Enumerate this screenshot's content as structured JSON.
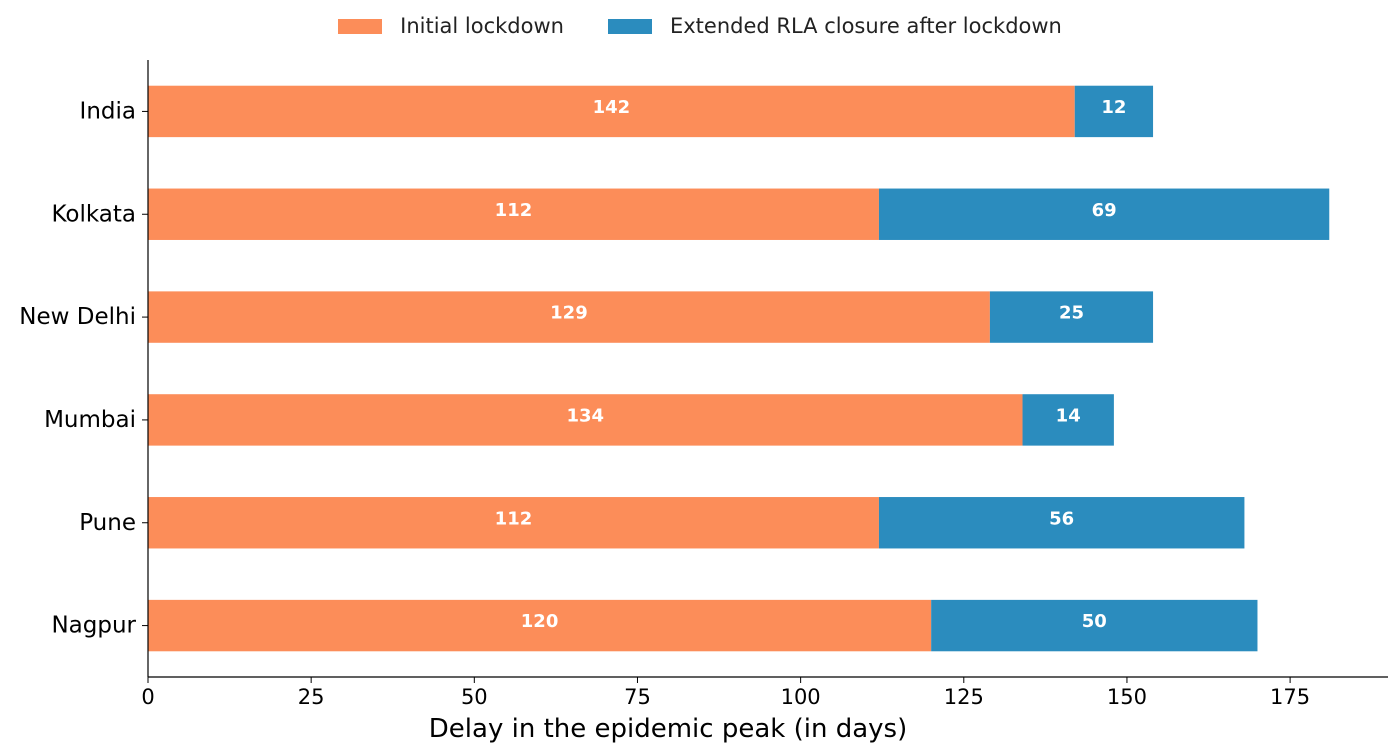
{
  "chart_data": {
    "type": "bar",
    "orientation": "horizontal",
    "stacked": true,
    "title": "",
    "xlabel": "Delay in the epidemic peak (in days)",
    "ylabel": "",
    "categories": [
      "India",
      "Kolkata",
      "New Delhi",
      "Mumbai",
      "Pune",
      "Nagpur"
    ],
    "series": [
      {
        "name": "Initial lockdown",
        "color": "#fc8d59",
        "values": [
          142,
          112,
          129,
          134,
          112,
          120
        ]
      },
      {
        "name": "Extended RLA closure after lockdown",
        "color": "#2b8cbe",
        "values": [
          12,
          69,
          25,
          14,
          56,
          50
        ]
      }
    ],
    "xlim": [
      0,
      190
    ],
    "xticks": [
      0,
      25,
      50,
      75,
      100,
      125,
      150,
      175
    ],
    "grid": false,
    "legend_position": "top-center",
    "data_labels": true
  }
}
